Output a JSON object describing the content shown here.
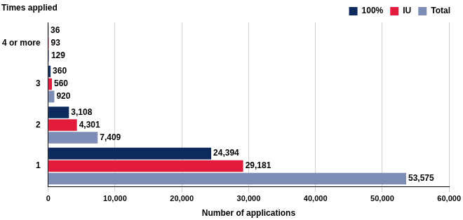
{
  "chart_data": {
    "type": "bar",
    "orientation": "horizontal",
    "xlabel": "Number of applications",
    "ylabel": "Times applied",
    "categories": [
      "1",
      "2",
      "3",
      "4 or more"
    ],
    "series": [
      {
        "name": "100%",
        "color": "#0c2a5c",
        "values": [
          24394,
          3108,
          360,
          36
        ],
        "value_labels": [
          "24,394",
          "3,108",
          "360",
          "36"
        ]
      },
      {
        "name": "IU",
        "color": "#e21a3b",
        "values": [
          29181,
          4301,
          560,
          93
        ],
        "value_labels": [
          "29,181",
          "4,301",
          "560",
          "93"
        ]
      },
      {
        "name": "Total",
        "color": "#7d8db5",
        "values": [
          53575,
          7409,
          920,
          129
        ],
        "value_labels": [
          "53,575",
          "7,409",
          "920",
          "129"
        ]
      }
    ],
    "xlim": [
      0,
      60000
    ],
    "xticks": [
      0,
      {
        "value": 10000,
        "label": "10,000"
      },
      {
        "value": 20000,
        "label": "20,000"
      },
      {
        "value": 30000,
        "label": "30,000"
      },
      {
        "value": 40000,
        "label": "40,000"
      },
      {
        "value": 50000,
        "label": "50,000"
      },
      {
        "value": 60000,
        "label": "60,000"
      }
    ],
    "grid": true,
    "legend": "top-right",
    "data_labels": true
  }
}
